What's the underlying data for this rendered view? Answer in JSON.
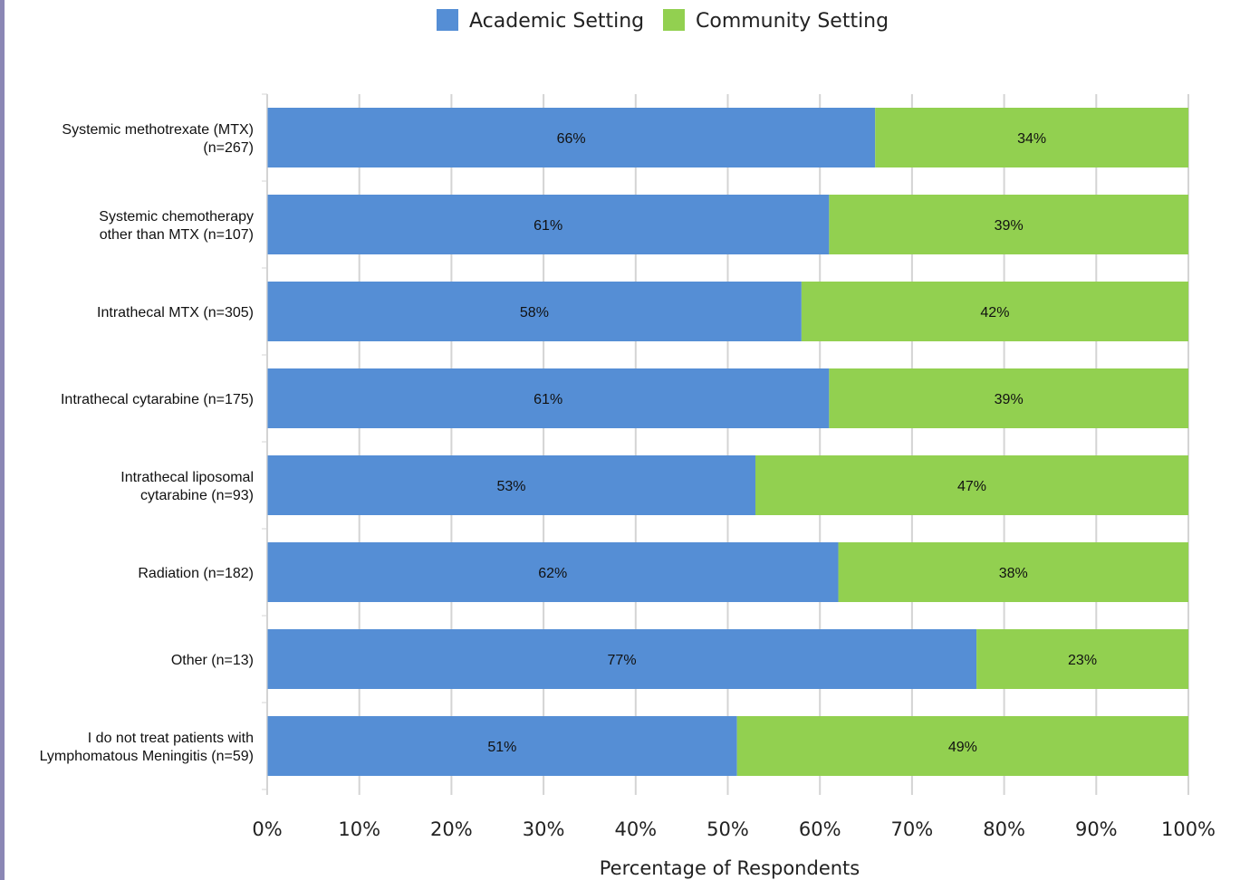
{
  "chart_data": {
    "type": "bar",
    "orientation": "horizontal",
    "stacked": true,
    "categories": [
      "Systemic methotrexate (MTX)\n(n=267)",
      "Systemic chemotherapy\nother than MTX (n=107)",
      "Intrathecal MTX (n=305)",
      "Intrathecal cytarabine (n=175)",
      "Intrathecal liposomal\ncytarabine (n=93)",
      "Radiation (n=182)",
      "Other (n=13)",
      "I do not treat patients with\nLymphomatous Meningitis (n=59)"
    ],
    "series": [
      {
        "name": "Academic Setting",
        "color": "#558ed5",
        "values": [
          66,
          61,
          58,
          61,
          53,
          62,
          77,
          51
        ],
        "labels": [
          "66%",
          "61%",
          "58%",
          "61%",
          "53%",
          "62%",
          "77%",
          "51%"
        ]
      },
      {
        "name": "Community Setting",
        "color": "#92d050",
        "values": [
          34,
          39,
          42,
          39,
          47,
          38,
          23,
          49
        ],
        "labels": [
          "34%",
          "39%",
          "42%",
          "39%",
          "47%",
          "38%",
          "23%",
          "49%"
        ]
      }
    ],
    "xlabel": "Percentage of Respondents",
    "ylabel": "",
    "xlim": [
      0,
      100
    ],
    "xticks": [
      "0%",
      "10%",
      "20%",
      "30%",
      "40%",
      "50%",
      "60%",
      "70%",
      "80%",
      "90%",
      "100%"
    ],
    "grid": "vertical",
    "legend_position": "top"
  }
}
